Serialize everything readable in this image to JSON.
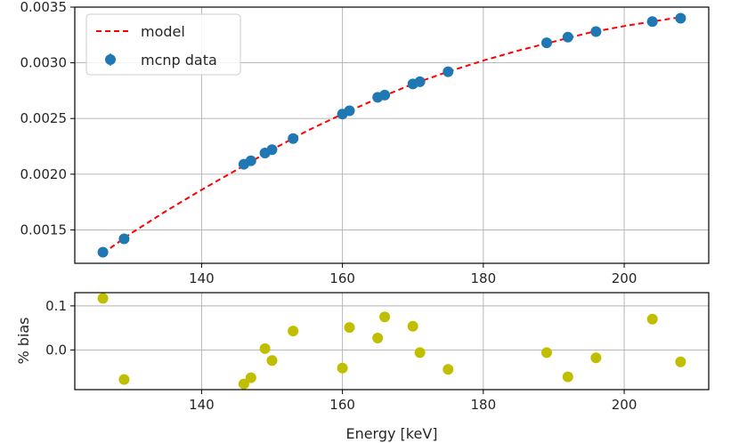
{
  "chart_data": [
    {
      "type": "scatter",
      "panel": "top",
      "xlim": [
        122,
        212
      ],
      "ylim": [
        0.0012,
        0.0035
      ],
      "xticks": [
        140,
        160,
        180,
        200
      ],
      "yticks": [
        0.0015,
        0.002,
        0.0025,
        0.003,
        0.0035
      ],
      "ytick_labels": [
        "0.0015",
        "0.0020",
        "0.0025",
        "0.0030",
        "0.0035"
      ],
      "grid": true,
      "legend": {
        "placement": "top-left",
        "entries": [
          {
            "label": "model",
            "style": "dashed-line",
            "color": "#ff0000"
          },
          {
            "label": "mcnp data",
            "style": "marker-errorbar",
            "color": "#1f77b4"
          }
        ]
      },
      "series": [
        {
          "name": "model",
          "style": "dashed",
          "color": "#ff0000",
          "x": [
            126,
            130,
            135,
            140,
            145,
            150,
            155,
            160,
            165,
            170,
            175,
            180,
            185,
            190,
            195,
            200,
            205,
            208
          ],
          "y": [
            0.00129,
            0.00147,
            0.00167,
            0.00186,
            0.00204,
            0.00222,
            0.00239,
            0.00254,
            0.00268,
            0.00281,
            0.00292,
            0.00302,
            0.00311,
            0.00319,
            0.00327,
            0.00333,
            0.00338,
            0.00341
          ]
        },
        {
          "name": "mcnp data",
          "style": "marker",
          "color": "#1f77b4",
          "x": [
            126,
            129,
            146,
            147,
            149,
            150,
            153,
            160,
            161,
            165,
            166,
            170,
            171,
            175,
            189,
            192,
            196,
            204,
            208
          ],
          "y": [
            0.0013,
            0.00142,
            0.00209,
            0.00212,
            0.00219,
            0.00222,
            0.00232,
            0.00254,
            0.00257,
            0.00269,
            0.00271,
            0.00281,
            0.00283,
            0.00292,
            0.00318,
            0.00323,
            0.00328,
            0.00337,
            0.0034
          ]
        }
      ]
    },
    {
      "type": "scatter",
      "panel": "bottom",
      "xlabel": "Energy [keV]",
      "ylabel": "% bias",
      "xlim": [
        122,
        212
      ],
      "ylim": [
        -0.09,
        0.13
      ],
      "xticks": [
        140,
        160,
        180,
        200
      ],
      "yticks": [
        0,
        0.1
      ],
      "ytick_labels": [
        "0.0",
        "0.1"
      ],
      "grid": true,
      "series": [
        {
          "name": "% bias",
          "style": "marker",
          "color": "#bfbf00",
          "x": [
            126,
            129,
            146,
            147,
            149,
            150,
            153,
            160,
            161,
            165,
            166,
            170,
            171,
            175,
            189,
            192,
            196,
            204,
            208
          ],
          "y": [
            0.117,
            -0.067,
            -0.077,
            -0.063,
            0.003,
            -0.024,
            0.043,
            -0.041,
            0.051,
            0.027,
            0.075,
            0.054,
            -0.006,
            -0.044,
            -0.006,
            -0.061,
            -0.018,
            0.07,
            -0.027
          ]
        }
      ]
    }
  ]
}
